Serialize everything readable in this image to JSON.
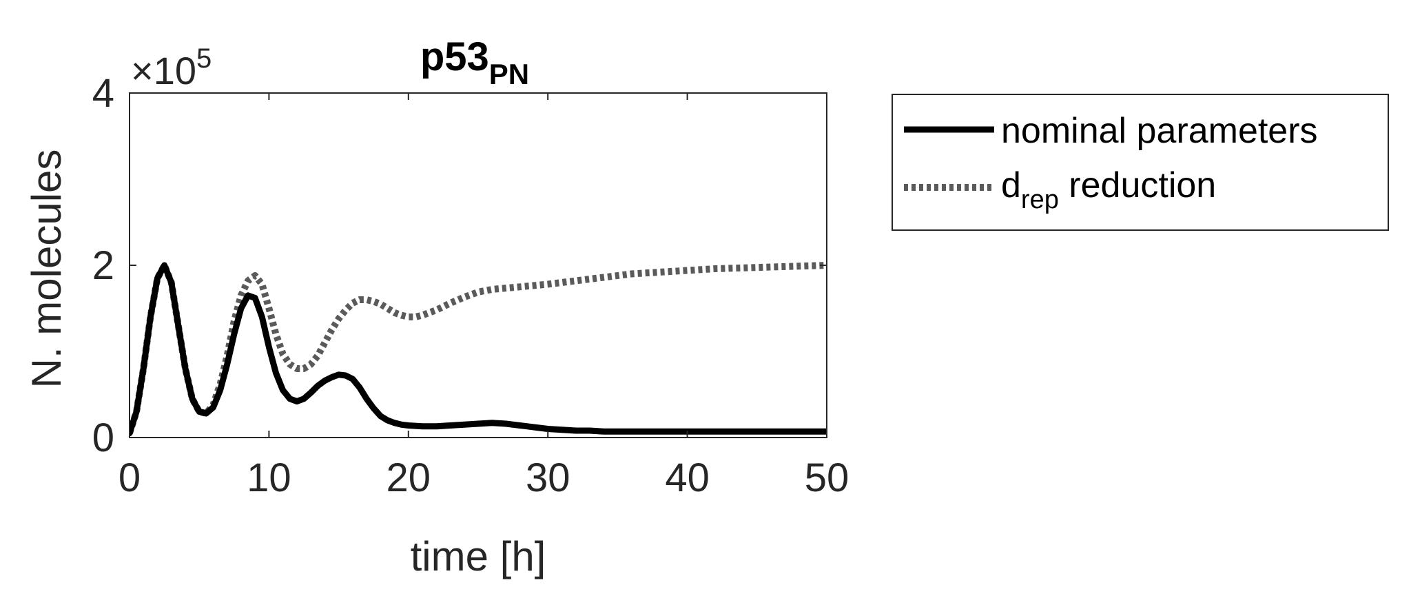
{
  "chart_data": {
    "type": "line",
    "title": "p53",
    "title_subscript": "PN",
    "xlabel": "time [h]",
    "ylabel": "N. molecules",
    "y_exponent_prefix": "×10",
    "y_exponent": "5",
    "xlim": [
      0,
      50
    ],
    "ylim": [
      0,
      4
    ],
    "x_ticks": [
      0,
      10,
      20,
      30,
      40,
      50
    ],
    "y_ticks": [
      0,
      2,
      4
    ],
    "x_tick_labels": [
      "0",
      "10",
      "20",
      "30",
      "40",
      "50"
    ],
    "y_tick_labels": [
      "0",
      "2",
      "4"
    ],
    "grid": false,
    "legend_position": "outside-right-top",
    "series": [
      {
        "name": "nominal parameters",
        "color": "#000000",
        "style": "solid",
        "x": [
          0,
          0.5,
          1,
          1.5,
          2,
          2.5,
          3,
          3.5,
          4,
          4.5,
          5,
          5.5,
          6,
          6.5,
          7,
          7.5,
          8,
          8.5,
          9,
          9.5,
          10,
          10.5,
          11,
          11.5,
          12,
          12.5,
          13,
          13.5,
          14,
          14.5,
          15,
          15.5,
          16,
          16.5,
          17,
          17.5,
          18,
          18.5,
          19,
          19.5,
          20,
          21,
          22,
          23,
          24,
          25,
          26,
          27,
          28,
          29,
          30,
          31,
          32,
          33,
          34,
          35,
          36,
          38,
          40,
          42,
          44,
          46,
          48,
          50
        ],
        "y": [
          0.05,
          0.3,
          0.8,
          1.4,
          1.85,
          2.0,
          1.8,
          1.3,
          0.8,
          0.45,
          0.3,
          0.28,
          0.35,
          0.55,
          0.85,
          1.2,
          1.5,
          1.65,
          1.62,
          1.4,
          1.05,
          0.75,
          0.55,
          0.45,
          0.42,
          0.45,
          0.52,
          0.6,
          0.66,
          0.7,
          0.73,
          0.72,
          0.68,
          0.58,
          0.45,
          0.34,
          0.25,
          0.2,
          0.17,
          0.15,
          0.14,
          0.13,
          0.13,
          0.14,
          0.15,
          0.16,
          0.17,
          0.16,
          0.14,
          0.12,
          0.1,
          0.09,
          0.08,
          0.08,
          0.07,
          0.07,
          0.07,
          0.07,
          0.07,
          0.07,
          0.07,
          0.07,
          0.07,
          0.07
        ]
      },
      {
        "name": "d",
        "name_subscript": "rep",
        "name_suffix": " reduction",
        "color": "#5a5a5a",
        "style": "dotted",
        "x": [
          0,
          0.5,
          1,
          1.5,
          2,
          2.5,
          3,
          3.5,
          4,
          4.5,
          5,
          5.5,
          6,
          6.5,
          7,
          7.5,
          8,
          8.5,
          9,
          9.5,
          10,
          10.5,
          11,
          11.5,
          12,
          12.5,
          13,
          13.5,
          14,
          14.5,
          15,
          15.5,
          16,
          16.5,
          17,
          17.5,
          18,
          18.5,
          19,
          19.5,
          20,
          20.5,
          21,
          22,
          23,
          24,
          25,
          26,
          28,
          30,
          32,
          34,
          36,
          38,
          40,
          42,
          44,
          46,
          48,
          50
        ],
        "y": [
          0.05,
          0.3,
          0.8,
          1.4,
          1.85,
          2.0,
          1.8,
          1.3,
          0.8,
          0.45,
          0.3,
          0.28,
          0.38,
          0.62,
          0.95,
          1.35,
          1.65,
          1.82,
          1.88,
          1.78,
          1.5,
          1.2,
          0.97,
          0.85,
          0.8,
          0.8,
          0.85,
          0.95,
          1.1,
          1.25,
          1.38,
          1.48,
          1.56,
          1.6,
          1.6,
          1.58,
          1.55,
          1.5,
          1.45,
          1.42,
          1.4,
          1.4,
          1.42,
          1.48,
          1.56,
          1.63,
          1.69,
          1.72,
          1.75,
          1.78,
          1.82,
          1.86,
          1.9,
          1.92,
          1.94,
          1.96,
          1.97,
          1.98,
          1.99,
          2.0
        ]
      }
    ]
  }
}
